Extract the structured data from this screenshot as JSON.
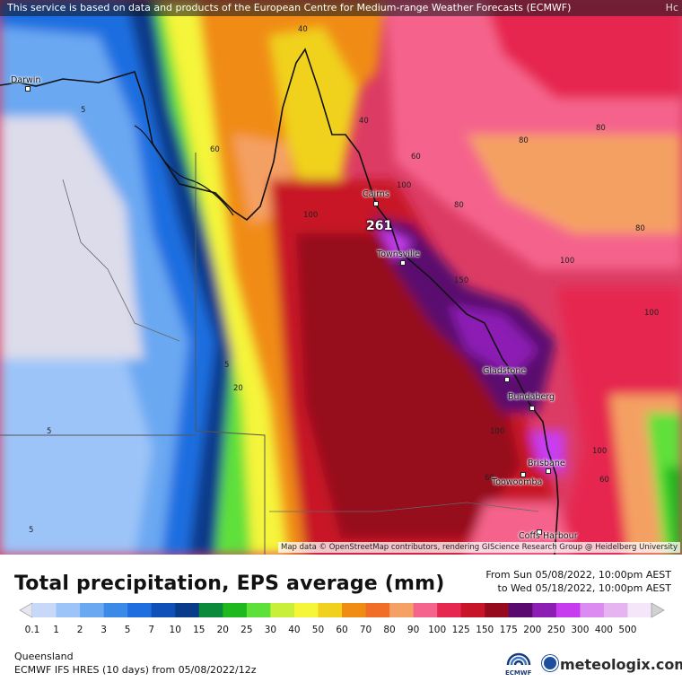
{
  "banner": {
    "text": "This service is based on data and products of the European Centre for Medium-range Weather Forecasts (ECMWF)",
    "corner": "Hc"
  },
  "map": {
    "attribution": "Map data © OpenStreetMap contributors, rendering GIScience Research Group @ Heidelberg University",
    "max_value": "261",
    "cities": [
      "Darwin",
      "Cairns",
      "Townsville",
      "Gladstone",
      "Bundaberg",
      "Brisbane",
      "Toowoomba",
      "Coffs Harbour"
    ],
    "contour_labels": [
      "40",
      "40",
      "60",
      "60",
      "80",
      "80",
      "100",
      "100",
      "100",
      "100",
      "150",
      "100",
      "100",
      "60",
      "20",
      "5",
      "5",
      "5",
      "5",
      "80",
      "60",
      "80"
    ]
  },
  "legend": {
    "title": "Total precipitation, EPS average (mm)",
    "from": "From Sun 05/08/2022, 10:00pm AEST",
    "to": "to Wed 05/18/2022, 10:00pm AEST",
    "ticks": [
      "0.1",
      "1",
      "2",
      "3",
      "5",
      "7",
      "10",
      "15",
      "20",
      "25",
      "30",
      "40",
      "50",
      "60",
      "70",
      "80",
      "90",
      "100",
      "125",
      "150",
      "175",
      "200",
      "250",
      "300",
      "400",
      "500"
    ],
    "colors": [
      "#e6e6f2",
      "#c8d8f8",
      "#9cc4f8",
      "#6aa8f2",
      "#3c8ae8",
      "#1f6ee0",
      "#0f4fb8",
      "#0a3a8a",
      "#0a8a3a",
      "#1fb81f",
      "#5ee03a",
      "#c8f03a",
      "#f5f53a",
      "#f0d21e",
      "#f08c14",
      "#f06e28",
      "#f5a064",
      "#f5648c",
      "#e62850",
      "#c81428",
      "#960a1e",
      "#5a0a6e",
      "#8c1eb4",
      "#c83cf0",
      "#dc8cf0",
      "#e6b4f0",
      "#f5e6fa",
      "#d2d2d2"
    ]
  },
  "footer": {
    "region": "Queensland",
    "model": "ECMWF IFS HRES (10 days) from 05/08/2022/12z",
    "ecmwf_logo": "ECMWF",
    "brand": "meteologix.com"
  }
}
